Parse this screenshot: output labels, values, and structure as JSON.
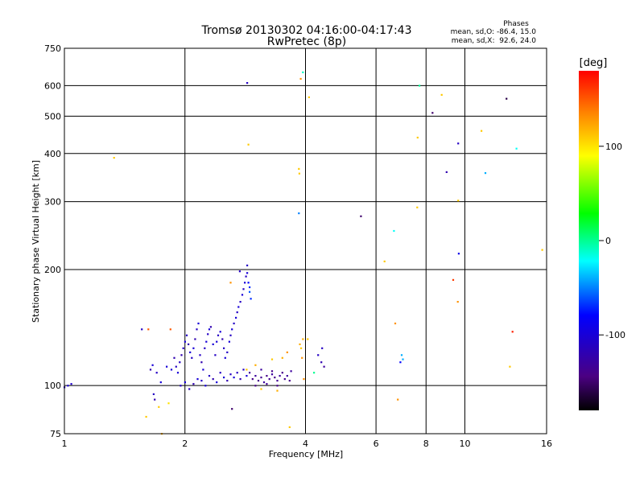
{
  "chart_data": {
    "type": "scatter",
    "title": "Tromsø 20130302 04:16:00-04:17:43",
    "subtitle": "RwPretec (8p)",
    "xlabel": "Frequency [MHz]",
    "ylabel": "Stationary phase Virtual Height [km]",
    "xscale": "log",
    "yscale": "log",
    "xlim": [
      1,
      16
    ],
    "ylim": [
      75,
      750
    ],
    "grid": true,
    "x_ticks": [
      1,
      2,
      4,
      6,
      8,
      10,
      16
    ],
    "x_tick_labels": [
      "1",
      "2",
      "4",
      "6",
      "8",
      "10",
      "16"
    ],
    "y_ticks": [
      75,
      100,
      200,
      300,
      400,
      500,
      600,
      750
    ],
    "y_tick_labels": [
      "75",
      "100",
      "200",
      "300",
      "400",
      "500",
      "600",
      "750"
    ],
    "phases_box": {
      "title": "Phases",
      "line1": "mean, sd,O: -86.4, 15.0",
      "line2": "mean, sd,X:  92.6, 24.0"
    },
    "colorbar": {
      "label": "[deg]",
      "range": [
        -180,
        180
      ],
      "ticks": [
        100,
        0,
        -100
      ],
      "tick_labels": [
        "100",
        "0",
        "-100"
      ]
    },
    "series": [
      {
        "points": [
          [
            1.0,
            99,
            -110
          ],
          [
            1.02,
            100,
            -100
          ],
          [
            1.04,
            101,
            -105
          ],
          [
            1.33,
            390,
            110
          ],
          [
            1.56,
            140,
            -110
          ],
          [
            1.62,
            140,
            150
          ],
          [
            1.64,
            110,
            -120
          ],
          [
            1.66,
            113,
            -100
          ],
          [
            1.67,
            95,
            -110
          ],
          [
            1.68,
            92,
            -120
          ],
          [
            1.7,
            108,
            -110
          ],
          [
            1.72,
            88,
            110
          ],
          [
            1.74,
            102,
            -100
          ],
          [
            1.6,
            83,
            110
          ],
          [
            1.75,
            75,
            120
          ],
          [
            1.82,
            90,
            100
          ],
          [
            1.8,
            112,
            -100
          ],
          [
            1.84,
            140,
            150
          ],
          [
            1.85,
            110,
            -100
          ],
          [
            1.88,
            118,
            -120
          ],
          [
            1.9,
            112,
            -110
          ],
          [
            1.92,
            108,
            -100
          ],
          [
            1.94,
            115,
            -110
          ],
          [
            1.96,
            120,
            -120
          ],
          [
            1.98,
            125,
            -110
          ],
          [
            2.0,
            130,
            -100
          ],
          [
            2.02,
            135,
            -110
          ],
          [
            2.04,
            128,
            -120
          ],
          [
            2.06,
            122,
            -100
          ],
          [
            2.08,
            118,
            -110
          ],
          [
            2.1,
            125,
            -100
          ],
          [
            2.12,
            132,
            -120
          ],
          [
            2.14,
            140,
            -110
          ],
          [
            2.16,
            145,
            -100
          ],
          [
            2.18,
            120,
            -110
          ],
          [
            2.2,
            115,
            -120
          ],
          [
            2.22,
            110,
            -100
          ],
          [
            2.24,
            125,
            -110
          ],
          [
            2.26,
            130,
            -100
          ],
          [
            2.28,
            136,
            -110
          ],
          [
            2.3,
            140,
            -100
          ],
          [
            2.32,
            142,
            -120
          ],
          [
            2.35,
            128,
            -100
          ],
          [
            2.38,
            120,
            -110
          ],
          [
            2.4,
            130,
            -100
          ],
          [
            2.42,
            135,
            -110
          ],
          [
            2.45,
            138,
            -100
          ],
          [
            2.48,
            132,
            -120
          ],
          [
            2.5,
            125,
            -110
          ],
          [
            2.52,
            118,
            -100
          ],
          [
            2.55,
            122,
            -110
          ],
          [
            2.58,
            130,
            -100
          ],
          [
            2.6,
            135,
            -110
          ],
          [
            2.62,
            140,
            -100
          ],
          [
            2.65,
            145,
            -110
          ],
          [
            2.68,
            150,
            -100
          ],
          [
            2.7,
            155,
            -110
          ],
          [
            2.72,
            160,
            -100
          ],
          [
            2.75,
            165,
            -110
          ],
          [
            2.78,
            172,
            -100
          ],
          [
            2.8,
            178,
            -110
          ],
          [
            2.82,
            185,
            -100
          ],
          [
            2.84,
            192,
            -110
          ],
          [
            2.86,
            196,
            -100
          ],
          [
            2.88,
            185,
            -80
          ],
          [
            2.9,
            180,
            -70
          ],
          [
            2.9,
            175,
            -60
          ],
          [
            2.92,
            168,
            -70
          ],
          [
            2.86,
            205,
            -110
          ],
          [
            2.74,
            198,
            -110
          ],
          [
            2.6,
            185,
            130
          ],
          [
            1.95,
            100,
            -110
          ],
          [
            2.0,
            102,
            -100
          ],
          [
            2.05,
            98,
            -110
          ],
          [
            2.1,
            101,
            -120
          ],
          [
            2.15,
            104,
            -100
          ],
          [
            2.2,
            103,
            -110
          ],
          [
            2.25,
            100,
            -100
          ],
          [
            2.3,
            106,
            -110
          ],
          [
            2.35,
            104,
            -120
          ],
          [
            2.4,
            102,
            -100
          ],
          [
            2.45,
            108,
            -110
          ],
          [
            2.5,
            105,
            -100
          ],
          [
            2.55,
            103,
            -120
          ],
          [
            2.6,
            107,
            -110
          ],
          [
            2.65,
            105,
            -100
          ],
          [
            2.7,
            108,
            -110
          ],
          [
            2.75,
            104,
            -120
          ],
          [
            2.8,
            110,
            -110
          ],
          [
            2.85,
            106,
            -100
          ],
          [
            2.9,
            108,
            -130
          ],
          [
            2.95,
            104,
            -140
          ],
          [
            3.0,
            106,
            -130
          ],
          [
            3.05,
            103,
            -140
          ],
          [
            3.1,
            105,
            -135
          ],
          [
            3.15,
            102,
            -130
          ],
          [
            3.2,
            106,
            -140
          ],
          [
            3.25,
            104,
            -135
          ],
          [
            3.3,
            107,
            -130
          ],
          [
            3.35,
            105,
            -140
          ],
          [
            3.4,
            103,
            -135
          ],
          [
            3.45,
            106,
            -130
          ],
          [
            3.5,
            108,
            -140
          ],
          [
            3.55,
            104,
            -135
          ],
          [
            3.6,
            106,
            -130
          ],
          [
            3.65,
            103,
            -140
          ],
          [
            3.68,
            109,
            -130
          ],
          [
            3.0,
            100,
            -140
          ],
          [
            3.2,
            101,
            -135
          ],
          [
            3.4,
            100,
            -140
          ],
          [
            3.1,
            110,
            -130
          ],
          [
            3.3,
            109,
            -140
          ],
          [
            2.62,
            87,
            -150
          ],
          [
            2.85,
            110,
            110
          ],
          [
            3.0,
            113,
            120
          ],
          [
            3.3,
            117,
            110
          ],
          [
            3.5,
            118,
            120
          ],
          [
            3.1,
            98,
            110
          ],
          [
            3.4,
            97,
            120
          ],
          [
            3.6,
            122,
            130
          ],
          [
            3.65,
            78,
            110
          ],
          [
            3.87,
            128,
            120
          ],
          [
            3.9,
            125,
            110
          ],
          [
            3.92,
            118,
            130
          ],
          [
            3.94,
            132,
            120
          ],
          [
            3.96,
            104,
            130
          ],
          [
            4.05,
            132,
            110
          ],
          [
            4.2,
            108,
            0
          ],
          [
            4.3,
            120,
            -110
          ],
          [
            4.38,
            115,
            -120
          ],
          [
            4.45,
            112,
            -130
          ],
          [
            4.4,
            125,
            -110
          ],
          [
            2.86,
            610,
            -110
          ],
          [
            3.89,
            625,
            130
          ],
          [
            3.94,
            650,
            -10
          ],
          [
            4.08,
            560,
            110
          ],
          [
            2.88,
            422,
            110
          ],
          [
            3.85,
            365,
            110
          ],
          [
            3.86,
            355,
            110
          ],
          [
            3.85,
            280,
            -50
          ],
          [
            5.5,
            275,
            -150
          ],
          [
            6.3,
            210,
            110
          ],
          [
            6.65,
            252,
            -20
          ],
          [
            6.7,
            145,
            130
          ],
          [
            6.8,
            92,
            130
          ],
          [
            6.95,
            120,
            -40
          ],
          [
            7.0,
            117,
            -40
          ],
          [
            6.9,
            115,
            -80
          ],
          [
            7.6,
            290,
            110
          ],
          [
            7.62,
            440,
            110
          ],
          [
            7.7,
            600,
            0
          ],
          [
            8.3,
            510,
            -150
          ],
          [
            8.75,
            568,
            110
          ],
          [
            9.0,
            358,
            -120
          ],
          [
            9.35,
            188,
            160
          ],
          [
            9.6,
            165,
            130
          ],
          [
            9.62,
            302,
            110
          ],
          [
            9.65,
            220,
            -90
          ],
          [
            9.62,
            425,
            -110
          ],
          [
            11.0,
            458,
            110
          ],
          [
            11.25,
            356,
            -40
          ],
          [
            12.7,
            555,
            -160
          ],
          [
            13.15,
            138,
            170
          ],
          [
            12.95,
            112,
            110
          ],
          [
            13.45,
            412,
            -20
          ],
          [
            15.6,
            225,
            110
          ]
        ]
      }
    ]
  }
}
